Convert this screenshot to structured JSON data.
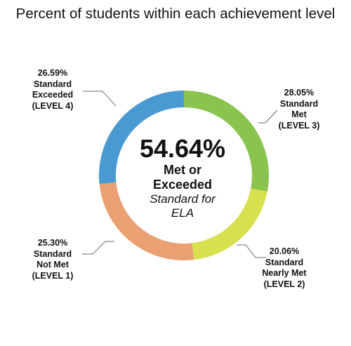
{
  "chart_data": {
    "type": "pie",
    "title": "Percent of students within each achievement level",
    "slices": [
      {
        "value": 28.05,
        "pct_label": "28.05%",
        "name_lines": [
          "Standard",
          "Met"
        ],
        "level": "(LEVEL 3)",
        "color": "#8bc34f"
      },
      {
        "value": 20.06,
        "pct_label": "20.06%",
        "name_lines": [
          "Standard",
          "Nearly Met"
        ],
        "level": "(LEVEL 2)",
        "color": "#d8e04e"
      },
      {
        "value": 25.3,
        "pct_label": "25.30%",
        "name_lines": [
          "Standard",
          "Not Met"
        ],
        "level": "(LEVEL 1)",
        "color": "#e9a073"
      },
      {
        "value": 26.59,
        "pct_label": "26.59%",
        "name_lines": [
          "Standard",
          "Exceeded"
        ],
        "level": "(LEVEL 4)",
        "color": "#4a9ad2"
      }
    ],
    "center": {
      "value": "54.64%",
      "line1": "Met or",
      "line2": "Exceeded",
      "line3": "Standard for",
      "line4": "ELA"
    }
  },
  "colors": {
    "leader_line": "#888888",
    "text": "#111111"
  }
}
